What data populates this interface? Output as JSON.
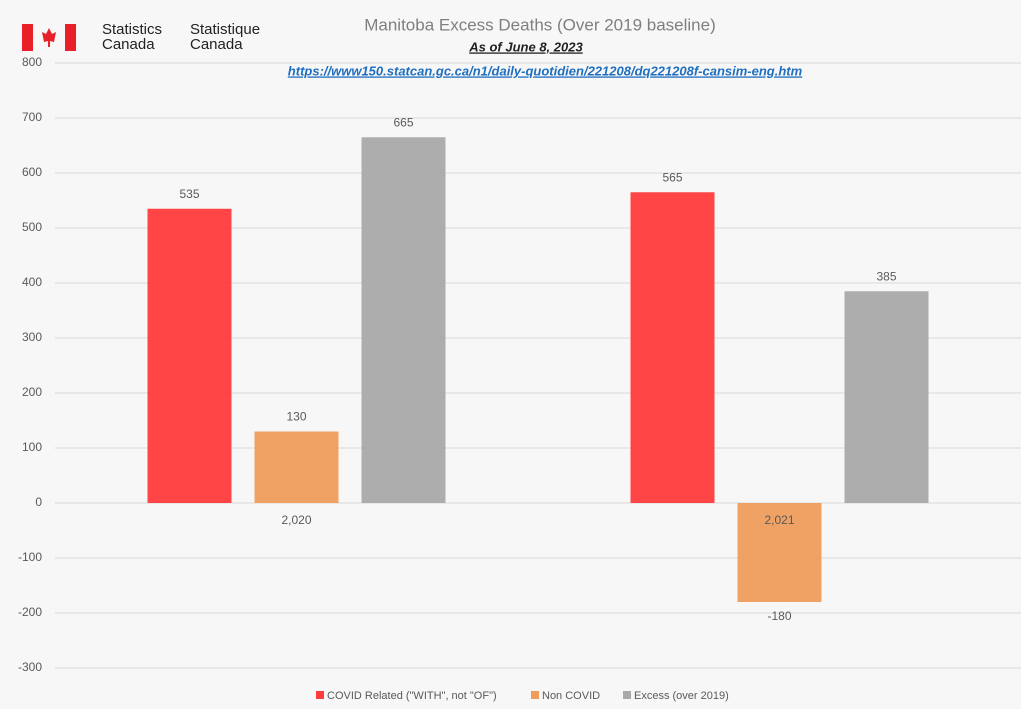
{
  "logo": {
    "english": [
      "Statistics",
      "Canada"
    ],
    "french": [
      "Statistique",
      "Canada"
    ]
  },
  "chart_data": {
    "type": "bar",
    "title": "Manitoba Excess Deaths (Over 2019 baseline)",
    "subtitle": "As of June 8, 2023",
    "source_link": "https://www150.statcan.gc.ca/n1/daily-quotidien/221208/dq221208f-cansim-eng.htm",
    "categories": [
      "2,020",
      "2,021"
    ],
    "series": [
      {
        "name": "COVID Related (\"WITH\", not \"OF\")",
        "color": "#ff3b3b",
        "values": [
          535,
          565
        ]
      },
      {
        "name": "Non COVID",
        "color": "#ef9d5c",
        "values": [
          130,
          -180
        ]
      },
      {
        "name": "Excess (over 2019)",
        "color": "#a9a9a9",
        "values": [
          665,
          385
        ]
      }
    ],
    "ylim": [
      -300,
      800
    ],
    "yticks": [
      -300,
      -200,
      -100,
      0,
      100,
      200,
      300,
      400,
      500,
      600,
      700,
      800
    ],
    "grid": true
  }
}
